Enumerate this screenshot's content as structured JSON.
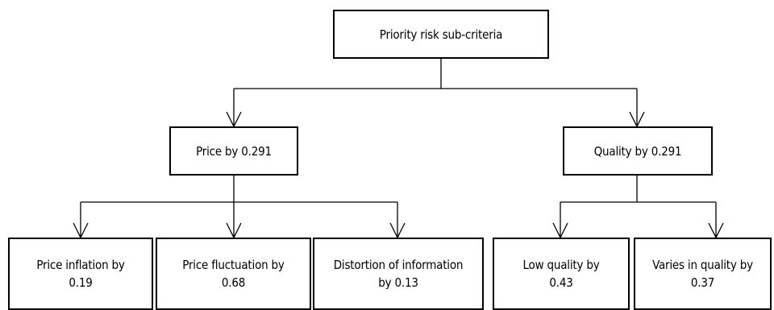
{
  "root": {
    "label": "Priority risk sub-criteria"
  },
  "branches": [
    {
      "label": "Price by 0.291",
      "children": [
        {
          "line1": "Price inflation by",
          "line2": "0.19"
        },
        {
          "line1": "Price fluctuation by",
          "line2": "0.68"
        },
        {
          "line1": "Distortion of information",
          "line2": "by 0.13"
        }
      ]
    },
    {
      "label": "Quality by 0.291",
      "children": [
        {
          "line1": "Low quality by",
          "line2": "0.43"
        },
        {
          "line1": "Varies in quality by",
          "line2": "0.37"
        }
      ]
    }
  ]
}
